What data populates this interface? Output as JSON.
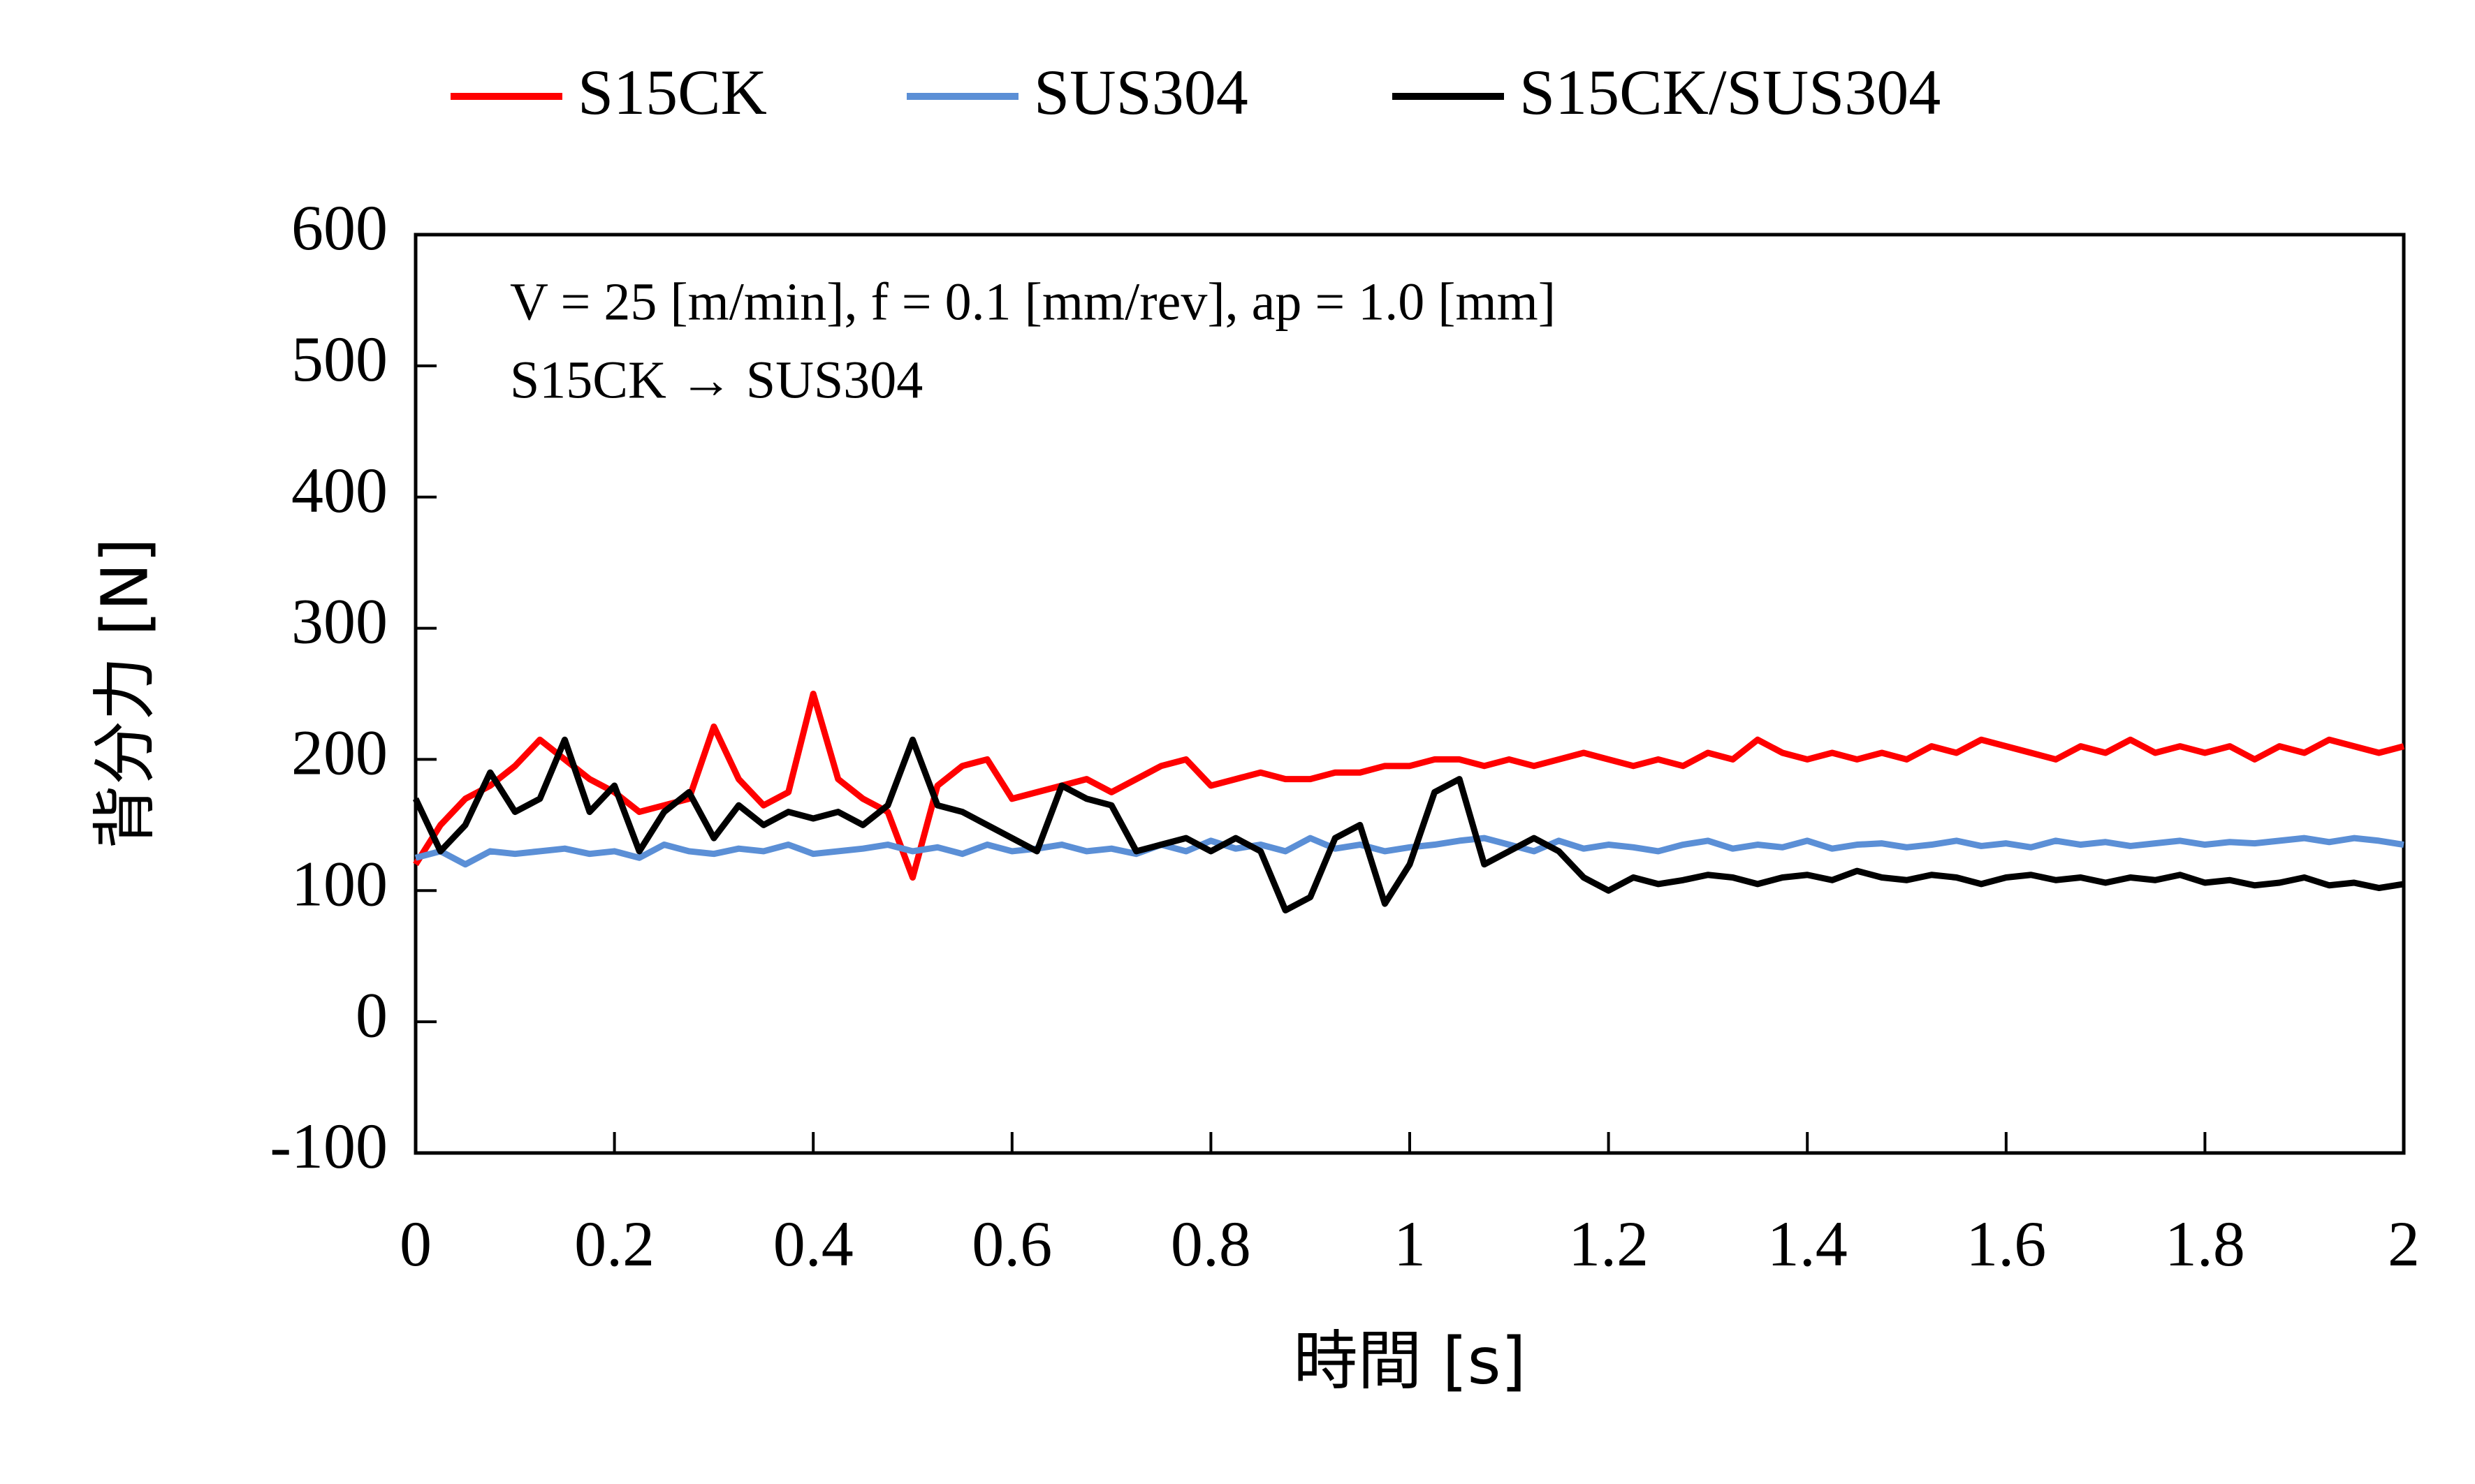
{
  "chart_data": {
    "type": "line",
    "x_label": "時間 [s]",
    "y_label": "背分力 [N]",
    "annotations": [
      "V = 25 [m/min], f = 0.1 [mm/rev], ap = 1.0 [mm]",
      "S15CK → SUS304"
    ],
    "x": [
      0,
      0.025,
      0.05,
      0.075,
      0.1,
      0.125,
      0.15,
      0.175,
      0.2,
      0.225,
      0.25,
      0.275,
      0.3,
      0.325,
      0.35,
      0.375,
      0.4,
      0.425,
      0.45,
      0.475,
      0.5,
      0.525,
      0.55,
      0.575,
      0.6,
      0.625,
      0.65,
      0.675,
      0.7,
      0.725,
      0.75,
      0.775,
      0.8,
      0.825,
      0.85,
      0.875,
      0.9,
      0.925,
      0.95,
      0.975,
      1,
      1.025,
      1.05,
      1.075,
      1.1,
      1.125,
      1.15,
      1.175,
      1.2,
      1.225,
      1.25,
      1.275,
      1.3,
      1.325,
      1.35,
      1.375,
      1.4,
      1.425,
      1.45,
      1.475,
      1.5,
      1.525,
      1.55,
      1.575,
      1.6,
      1.625,
      1.65,
      1.675,
      1.7,
      1.725,
      1.75,
      1.775,
      1.8,
      1.825,
      1.85,
      1.875,
      1.9,
      1.925,
      1.95,
      1.975,
      2
    ],
    "series": [
      {
        "name": "S15CK",
        "color": "#ff0000",
        "values": [
          120,
          150,
          170,
          180,
          195,
          215,
          200,
          185,
          175,
          160,
          165,
          170,
          225,
          185,
          165,
          175,
          250,
          185,
          170,
          160,
          110,
          180,
          195,
          200,
          170,
          175,
          180,
          185,
          175,
          185,
          195,
          200,
          180,
          185,
          190,
          185,
          185,
          190,
          190,
          195,
          195,
          200,
          200,
          195,
          200,
          195,
          200,
          205,
          200,
          195,
          200,
          195,
          205,
          200,
          215,
          205,
          200,
          205,
          200,
          205,
          200,
          210,
          205,
          215,
          210,
          205,
          200,
          210,
          205,
          215,
          205,
          210,
          205,
          210,
          200,
          210,
          205,
          215,
          210,
          205,
          210
        ]
      },
      {
        "name": "SUS304",
        "color": "#5b8fd6",
        "values": [
          125,
          130,
          120,
          130,
          128,
          130,
          132,
          128,
          130,
          125,
          135,
          130,
          128,
          132,
          130,
          135,
          128,
          130,
          132,
          135,
          130,
          133,
          128,
          135,
          130,
          132,
          135,
          130,
          132,
          128,
          135,
          130,
          138,
          132,
          135,
          130,
          140,
          132,
          135,
          130,
          133,
          135,
          138,
          140,
          135,
          130,
          138,
          132,
          135,
          133,
          130,
          135,
          138,
          132,
          135,
          133,
          138,
          132,
          135,
          136,
          133,
          135,
          138,
          134,
          136,
          133,
          138,
          135,
          137,
          134,
          136,
          138,
          135,
          137,
          136,
          138,
          140,
          137,
          140,
          138,
          135
        ]
      },
      {
        "name": "S15CK/SUS304",
        "color": "#000000",
        "values": [
          170,
          130,
          150,
          190,
          160,
          170,
          215,
          160,
          180,
          130,
          160,
          175,
          140,
          165,
          150,
          160,
          155,
          160,
          150,
          165,
          215,
          165,
          160,
          150,
          140,
          130,
          180,
          170,
          165,
          130,
          135,
          140,
          130,
          140,
          130,
          85,
          95,
          140,
          150,
          90,
          120,
          175,
          185,
          120,
          130,
          140,
          130,
          110,
          100,
          110,
          105,
          108,
          112,
          110,
          105,
          110,
          112,
          108,
          115,
          110,
          108,
          112,
          110,
          105,
          110,
          112,
          108,
          110,
          106,
          110,
          108,
          112,
          106,
          108,
          104,
          106,
          110,
          104,
          106,
          102,
          105
        ]
      }
    ],
    "xlim": [
      0,
      2
    ],
    "xticks": [
      0,
      0.2,
      0.4,
      0.6,
      0.8,
      1,
      1.2,
      1.4,
      1.6,
      1.8,
      2
    ],
    "ylim": [
      -100,
      600
    ],
    "yticks": [
      -100,
      0,
      100,
      200,
      300,
      400,
      500,
      600
    ],
    "grid": false,
    "legend": "top"
  }
}
